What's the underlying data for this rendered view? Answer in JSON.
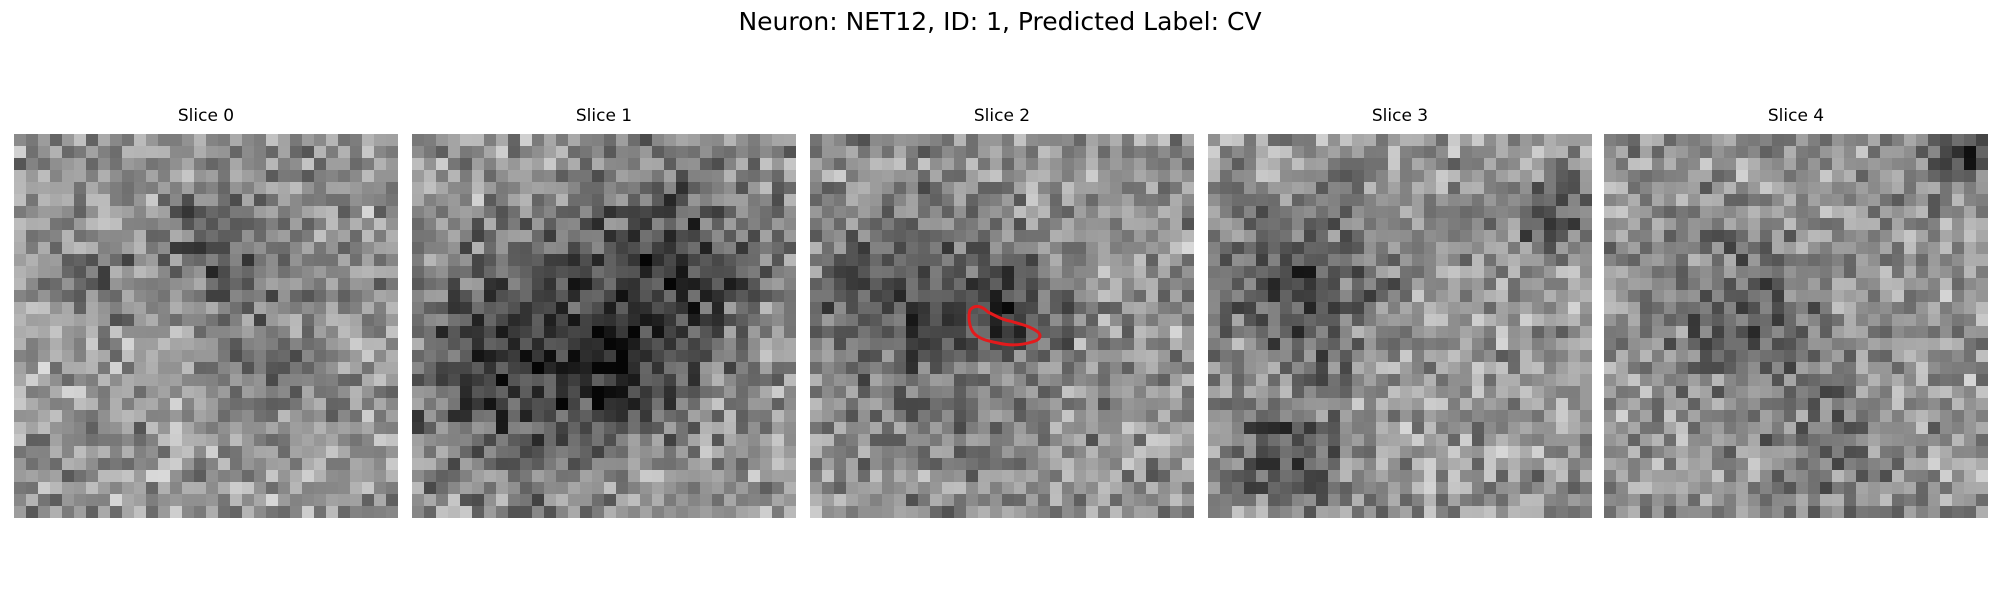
{
  "figure": {
    "title": "Neuron: NET12, ID: 1, Predicted Label: CV"
  },
  "panels": [
    {
      "label": "Slice 0",
      "seed": 11,
      "dark_blobs": [
        [
          0.55,
          0.3,
          0.16,
          70
        ],
        [
          0.7,
          0.62,
          0.12,
          55
        ],
        [
          0.2,
          0.35,
          0.1,
          40
        ]
      ],
      "outline": false
    },
    {
      "label": "Slice 1",
      "seed": 23,
      "dark_blobs": [
        [
          0.25,
          0.6,
          0.28,
          95
        ],
        [
          0.68,
          0.35,
          0.25,
          85
        ],
        [
          0.55,
          0.62,
          0.16,
          70
        ]
      ],
      "outline": false
    },
    {
      "label": "Slice 2",
      "seed": 37,
      "dark_blobs": [
        [
          0.3,
          0.5,
          0.32,
          60
        ],
        [
          0.52,
          0.45,
          0.12,
          55
        ],
        [
          0.15,
          0.38,
          0.1,
          45
        ]
      ],
      "outline": true
    },
    {
      "label": "Slice 3",
      "seed": 41,
      "dark_blobs": [
        [
          0.25,
          0.4,
          0.22,
          70
        ],
        [
          0.2,
          0.85,
          0.14,
          70
        ],
        [
          0.92,
          0.2,
          0.1,
          85
        ]
      ],
      "outline": false
    },
    {
      "label": "Slice 4",
      "seed": 53,
      "dark_blobs": [
        [
          0.35,
          0.45,
          0.22,
          55
        ],
        [
          0.95,
          0.05,
          0.09,
          90
        ],
        [
          0.6,
          0.82,
          0.16,
          40
        ]
      ],
      "outline": false
    }
  ],
  "grid_cells": 32,
  "colormap": "gray",
  "outline_color": "#e31a1c"
}
